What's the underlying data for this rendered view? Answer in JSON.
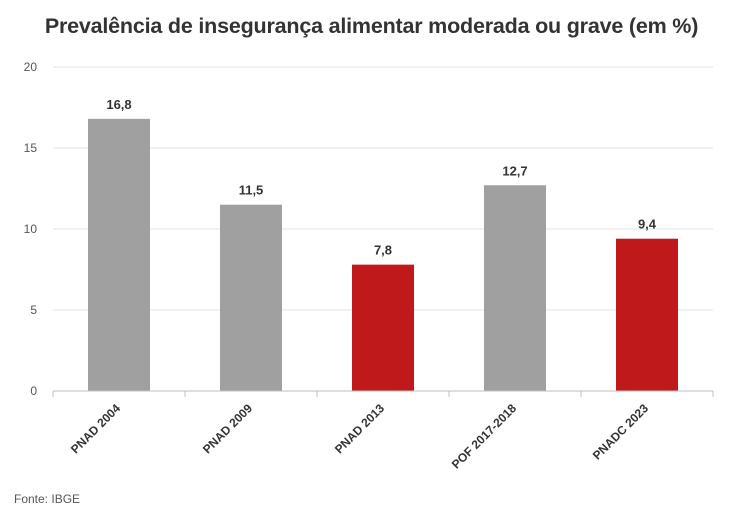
{
  "chart_data": {
    "type": "bar",
    "title": "Prevalência de insegurança alimentar moderada ou grave (em %)",
    "categories": [
      "PNAD 2004",
      "PNAD 2009",
      "PNAD 2013",
      "POF 2017-2018",
      "PNADC 2023"
    ],
    "values": [
      16.8,
      11.5,
      7.8,
      12.7,
      9.4
    ],
    "value_labels": [
      "16,8",
      "11,5",
      "7,8",
      "12,7",
      "9,4"
    ],
    "bar_colors": [
      "#a0a0a0",
      "#a0a0a0",
      "#c0191b",
      "#a0a0a0",
      "#c0191b"
    ],
    "y_ticks": [
      0,
      5,
      10,
      15,
      20
    ],
    "ylim": [
      0,
      20
    ],
    "grid": true,
    "legend": "none"
  },
  "source": "Fonte: IBGE"
}
